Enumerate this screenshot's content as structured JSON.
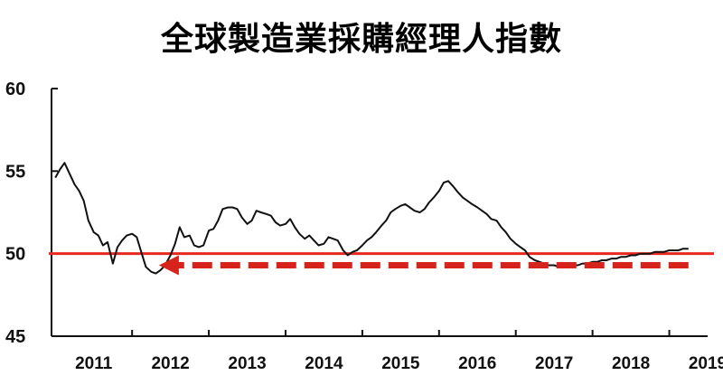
{
  "chart_data": {
    "type": "line",
    "title": "全球製造業採購經理人指數",
    "xlabel": "",
    "ylabel": "",
    "ylim": [
      45,
      60
    ],
    "xlim": [
      2010.95,
      2019.5
    ],
    "yticks": [
      45,
      50,
      55,
      60
    ],
    "xticks": [
      "2011",
      "2012",
      "2013",
      "2014",
      "2015",
      "2016",
      "2017",
      "2018",
      "2019"
    ],
    "grid": false,
    "reference_line": {
      "y": 50,
      "color": "#e8281e"
    },
    "arrow": {
      "from_x": 2019.25,
      "to_x": 2012.35,
      "y": 49.3,
      "color": "#d6231b",
      "style": "dashed"
    },
    "line_color": "#111111",
    "x": [
      2011.0,
      2011.06,
      2011.12,
      2011.18,
      2011.25,
      2011.31,
      2011.37,
      2011.43,
      2011.5,
      2011.56,
      2011.62,
      2011.68,
      2011.75,
      2011.81,
      2011.87,
      2011.93,
      2012.0,
      2012.06,
      2012.12,
      2012.18,
      2012.25,
      2012.31,
      2012.37,
      2012.43,
      2012.5,
      2012.56,
      2012.62,
      2012.68,
      2012.75,
      2012.81,
      2012.87,
      2012.93,
      2013.0,
      2013.06,
      2013.12,
      2013.18,
      2013.25,
      2013.31,
      2013.37,
      2013.43,
      2013.5,
      2013.56,
      2013.62,
      2013.68,
      2013.75,
      2013.81,
      2013.87,
      2013.93,
      2014.0,
      2014.06,
      2014.12,
      2014.18,
      2014.25,
      2014.31,
      2014.37,
      2014.43,
      2014.5,
      2014.56,
      2014.62,
      2014.68,
      2014.75,
      2014.81,
      2014.87,
      2014.93,
      2015.0,
      2015.06,
      2015.12,
      2015.18,
      2015.25,
      2015.31,
      2015.37,
      2015.43,
      2015.5,
      2015.56,
      2015.62,
      2015.68,
      2015.75,
      2015.81,
      2015.87,
      2015.93,
      2016.0,
      2016.06,
      2016.12,
      2016.18,
      2016.25,
      2016.31,
      2016.37,
      2016.43,
      2016.5,
      2016.56,
      2016.62,
      2016.68,
      2016.75,
      2016.81,
      2016.87,
      2016.93,
      2017.0,
      2017.06,
      2017.12,
      2017.18,
      2017.25,
      2017.31,
      2017.37,
      2017.43,
      2017.5,
      2017.56,
      2017.62,
      2017.68,
      2017.75,
      2017.81,
      2017.87,
      2017.93,
      2018.0,
      2018.06,
      2018.12,
      2018.18,
      2018.25,
      2018.31,
      2018.37,
      2018.43,
      2018.5,
      2018.56,
      2018.62,
      2018.68,
      2018.75,
      2018.81,
      2018.87,
      2018.93,
      2019.0,
      2019.06,
      2019.12,
      2019.18,
      2019.25
    ],
    "y": [
      54.6,
      55.1,
      55.5,
      54.9,
      54.2,
      53.8,
      53.2,
      52.0,
      51.3,
      51.1,
      50.5,
      50.7,
      49.4,
      50.4,
      50.8,
      51.1,
      51.2,
      51.0,
      50.1,
      49.2,
      48.9,
      48.8,
      49.0,
      49.3,
      49.9,
      50.6,
      51.6,
      51.0,
      51.1,
      50.5,
      50.4,
      50.5,
      51.4,
      51.5,
      52.0,
      52.7,
      52.8,
      52.8,
      52.7,
      52.2,
      51.8,
      52.0,
      52.6,
      52.5,
      52.4,
      52.3,
      51.9,
      51.7,
      51.8,
      52.1,
      51.6,
      51.2,
      50.9,
      51.1,
      50.8,
      50.5,
      50.6,
      51.0,
      50.9,
      50.8,
      50.2,
      49.9,
      50.1,
      50.2,
      50.5,
      50.8,
      51.0,
      51.3,
      51.7,
      52.0,
      52.5,
      52.7,
      52.9,
      53.0,
      52.8,
      52.6,
      52.5,
      52.7,
      53.1,
      53.4,
      53.8,
      54.3,
      54.4,
      54.1,
      53.7,
      53.4,
      53.2,
      53.0,
      52.8,
      52.6,
      52.4,
      52.1,
      52.0,
      51.6,
      51.3,
      50.9,
      50.6,
      50.4,
      50.2,
      49.8,
      49.6,
      49.5,
      49.4,
      49.3,
      49.3,
      49.2,
      49.2,
      49.2,
      49.3,
      49.3,
      49.4,
      49.4,
      49.5,
      49.5,
      49.6,
      49.6,
      49.7,
      49.7,
      49.8,
      49.8,
      49.9,
      49.9,
      50.0,
      50.0,
      50.0,
      50.1,
      50.1,
      50.1,
      50.2,
      50.2,
      50.2,
      50.3,
      50.3
    ]
  }
}
